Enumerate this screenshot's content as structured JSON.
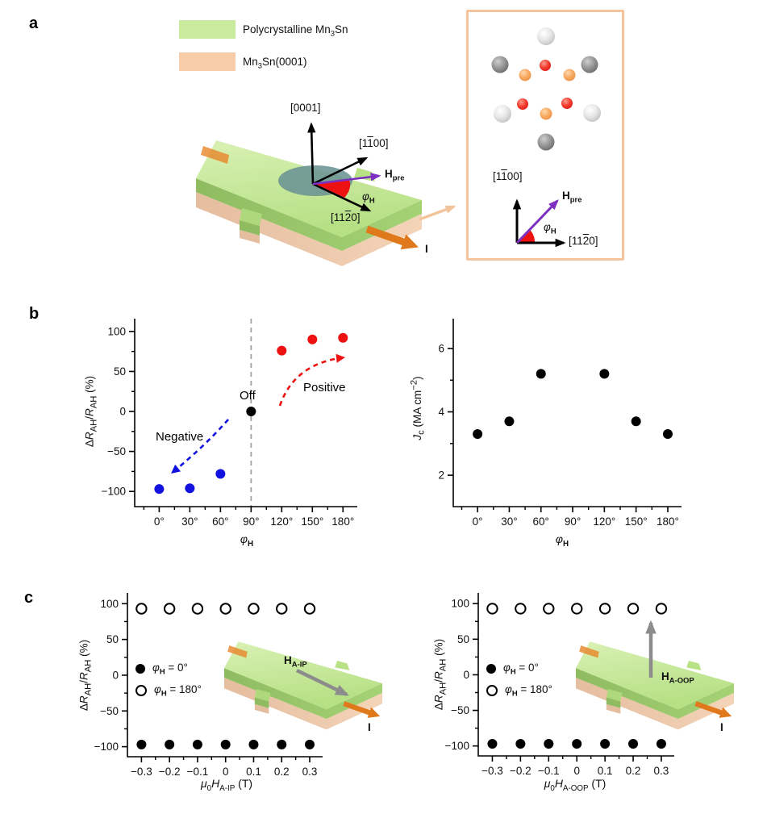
{
  "panel_labels": {
    "a": "a",
    "b": "b",
    "c": "c"
  },
  "colors": {
    "swatch_green": "#c9eb9e",
    "swatch_peach": "#f7cda9",
    "device_green_light": "#d8f0b2",
    "device_green": "#b9e287",
    "device_green_side": "#9dcb6e",
    "device_peach_side": "#f1cfb2",
    "orange_current": "#e0791b",
    "teal_disk": "#6b9394",
    "red_wedge": "#ed1111",
    "purple_field": "#7c2fc0",
    "blue_series": "#1212e0",
    "red_series": "#ee1111",
    "gray_arrow": "#8c8c8c"
  },
  "panel_a": {
    "legend": [
      {
        "pre": "Polycrystalline Mn",
        "sub": "3",
        "post": "Sn"
      },
      {
        "pre": "Mn",
        "sub": "3",
        "post": "Sn(0001)"
      }
    ],
    "axes": {
      "c0001": "[0001]",
      "c1100": {
        "a": "[1",
        "bar": "1",
        "b": "00]"
      },
      "c1120": {
        "a": "[11",
        "bar": "2",
        "b": "0]"
      },
      "h_pre": {
        "h": "H",
        "sub": "pre"
      },
      "current": "I"
    },
    "inset_atoms": {
      "silver": [
        [
          96,
          30
        ],
        [
          42,
          126
        ],
        [
          153,
          125
        ]
      ],
      "darkgray": [
        [
          39,
          65
        ],
        [
          150,
          65
        ],
        [
          96,
          161
        ]
      ],
      "red": [
        [
          95,
          66
        ],
        [
          67,
          114
        ],
        [
          122,
          113
        ]
      ],
      "orange": [
        [
          70,
          78
        ],
        [
          125,
          78
        ],
        [
          96,
          126
        ]
      ]
    }
  },
  "panel_c": {
    "legend": {
      "phi": "φ",
      "h": "H",
      "eq0": " = 0°",
      "eq180": " = 180°"
    },
    "h_aip": {
      "h": "H",
      "sub": "A-IP"
    },
    "h_aoop": {
      "h": "H",
      "sub": "A-OOP"
    }
  },
  "labels": {
    "rah": {
      "delta": "Δ",
      "r": "R",
      "ah": "AH",
      "slash": "/",
      "pct": " (%)"
    },
    "jc": {
      "j": "J",
      "c": "c",
      "u1": " (MA cm",
      "exp": "−2",
      "u2": ")"
    },
    "phi": {
      "phi": "φ",
      "h": "H"
    },
    "mu_aip": {
      "mu": "μ",
      "zero": "0",
      "h": "H",
      "sub": "A-IP",
      "unit": " (T)"
    },
    "mu_aoop": {
      "mu": "μ",
      "zero": "0",
      "h": "H",
      "sub": "A-OOP",
      "unit": " (T)"
    },
    "off": "Off",
    "negative": "Negative",
    "positive": "Positive"
  },
  "chart_data": [
    {
      "id": "chart-b-left",
      "type": "scatter",
      "xlabel": "φ_H",
      "ylabel": "ΔR_AH/R_AH (%)",
      "xlim": [
        -24,
        194
      ],
      "ylim": [
        -119,
        116
      ],
      "grid": false,
      "xticks": {
        "values": [
          0,
          30,
          60,
          90,
          120,
          150,
          180
        ],
        "labels": [
          "0°",
          "30°",
          "60°",
          "90°",
          "120°",
          "150°",
          "180°"
        ],
        "minor": [
          -15,
          15,
          45,
          75,
          105,
          135,
          165,
          195
        ]
      },
      "yticks": {
        "values": [
          100,
          50,
          0,
          -50,
          -100
        ],
        "labels": [
          "100",
          "50",
          "0",
          "−50",
          "−100"
        ],
        "minor": [
          75,
          25,
          -25,
          -75
        ]
      },
      "vline": 90,
      "series": [
        {
          "name": "negative",
          "marker": "filled",
          "color": "#1212e0",
          "points": [
            [
              0,
              -97
            ],
            [
              30,
              -96
            ],
            [
              60,
              -78
            ]
          ]
        },
        {
          "name": "off",
          "marker": "filled",
          "color": "#000000",
          "points": [
            [
              90,
              0
            ]
          ]
        },
        {
          "name": "positive",
          "marker": "filled",
          "color": "#ee1111",
          "points": [
            [
              120,
              76
            ],
            [
              150,
              90
            ],
            [
              180,
              92
            ]
          ]
        }
      ],
      "annotations": [
        "Negative",
        "Off",
        "Positive"
      ]
    },
    {
      "id": "chart-b-right",
      "type": "scatter",
      "xlabel": "φ_H",
      "ylabel": "J_c (MA cm−2)",
      "xlim": [
        -23,
        193
      ],
      "ylim": [
        1.01,
        6.94
      ],
      "grid": false,
      "xticks": {
        "values": [
          0,
          30,
          60,
          90,
          120,
          150,
          180
        ],
        "labels": [
          "0°",
          "30°",
          "60°",
          "90°",
          "120°",
          "150°",
          "180°"
        ],
        "minor": [
          -15,
          15,
          45,
          75,
          105,
          135,
          165,
          195
        ]
      },
      "yticks": {
        "values": [
          6,
          4,
          2
        ],
        "labels": [
          "6",
          "4",
          "2"
        ],
        "minor": [
          7,
          5,
          3,
          1
        ]
      },
      "series": [
        {
          "name": "jc",
          "marker": "filled",
          "color": "#000000",
          "points": [
            [
              0,
              3.3
            ],
            [
              30,
              3.7
            ],
            [
              60,
              5.2
            ],
            [
              120,
              5.2
            ],
            [
              150,
              3.7
            ],
            [
              180,
              3.3
            ]
          ]
        }
      ]
    },
    {
      "id": "chart-c-left",
      "type": "scatter",
      "xlabel": "μ0H_A-IP (T)",
      "ylabel": "ΔR_AH/R_AH (%)",
      "xlim": [
        -0.35,
        0.346
      ],
      "ylim": [
        -114,
        115
      ],
      "grid": false,
      "xticks": {
        "values": [
          -0.3,
          -0.2,
          -0.1,
          0,
          0.1,
          0.2,
          0.3
        ],
        "labels": [
          "−0.3",
          "−0.2",
          "−0.1",
          "0",
          "0.1",
          "0.2",
          "0.3"
        ],
        "minor": [
          -0.25,
          -0.15,
          -0.05,
          0.05,
          0.15,
          0.25
        ]
      },
      "yticks": {
        "values": [
          100,
          50,
          0,
          -50,
          -100
        ],
        "labels": [
          "100",
          "50",
          "0",
          "−50",
          "−100"
        ],
        "minor": [
          75,
          25,
          -25,
          -75
        ]
      },
      "series": [
        {
          "name": "phi180",
          "marker": "open",
          "color": "#000000",
          "points": [
            [
              -0.3,
              93
            ],
            [
              -0.2,
              93
            ],
            [
              -0.1,
              93
            ],
            [
              0,
              93
            ],
            [
              0.1,
              93
            ],
            [
              0.2,
              93
            ],
            [
              0.3,
              93
            ]
          ]
        },
        {
          "name": "phi0",
          "marker": "filled",
          "color": "#000000",
          "points": [
            [
              -0.3,
              -97
            ],
            [
              -0.2,
              -97
            ],
            [
              -0.1,
              -97
            ],
            [
              0,
              -97
            ],
            [
              0.1,
              -97
            ],
            [
              0.2,
              -97
            ],
            [
              0.3,
              -97
            ]
          ]
        }
      ]
    },
    {
      "id": "chart-c-right",
      "type": "scatter",
      "xlabel": "μ0H_A-OOP (T)",
      "ylabel": "ΔR_AH/R_AH (%)",
      "xlim": [
        -0.35,
        0.346
      ],
      "ylim": [
        -114,
        115
      ],
      "grid": false,
      "xticks": {
        "values": [
          -0.3,
          -0.2,
          -0.1,
          0,
          0.1,
          0.2,
          0.3
        ],
        "labels": [
          "−0.3",
          "−0.2",
          "−0.1",
          "0",
          "0.1",
          "0.2",
          "0.3"
        ],
        "minor": [
          -0.25,
          -0.15,
          -0.05,
          0.05,
          0.15,
          0.25
        ]
      },
      "yticks": {
        "values": [
          100,
          50,
          0,
          -50,
          -100
        ],
        "labels": [
          "100",
          "50",
          "0",
          "−50",
          "−100"
        ],
        "minor": [
          75,
          25,
          -25,
          -75
        ]
      },
      "series": [
        {
          "name": "phi180",
          "marker": "open",
          "color": "#000000",
          "points": [
            [
              -0.3,
              93
            ],
            [
              -0.2,
              93
            ],
            [
              -0.1,
              93
            ],
            [
              0,
              93
            ],
            [
              0.1,
              93
            ],
            [
              0.2,
              93
            ],
            [
              0.3,
              93
            ]
          ]
        },
        {
          "name": "phi0",
          "marker": "filled",
          "color": "#000000",
          "points": [
            [
              -0.3,
              -97
            ],
            [
              -0.2,
              -97
            ],
            [
              -0.1,
              -97
            ],
            [
              0,
              -97
            ],
            [
              0.1,
              -97
            ],
            [
              0.2,
              -97
            ],
            [
              0.3,
              -97
            ]
          ]
        }
      ]
    }
  ]
}
